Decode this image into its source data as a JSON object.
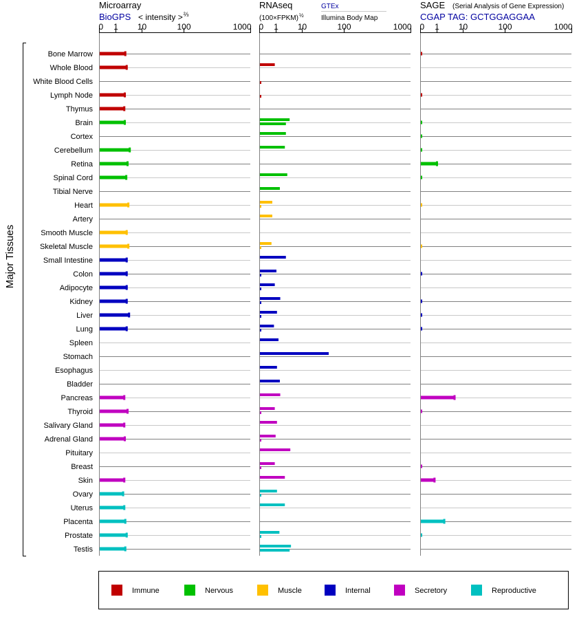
{
  "headers": {
    "microarray": {
      "title": "Microarray",
      "source": "BioGPS",
      "unit": "< intensity >",
      "unit_exp": "⅔"
    },
    "rnaseq": {
      "title": "RNAseq",
      "unit": "(100×FPKM)",
      "unit_exp": "½",
      "source_gtex": "GTEx",
      "source_ibm": "Illumina Body Map"
    },
    "sage": {
      "title": "SAGE",
      "subtitle": "(Serial Analysis of Gene Expression)",
      "tag": "CGAP TAG: GCTGGAGGAA"
    }
  },
  "group_label": "Major Tissues",
  "colors": {
    "Immune": "#c00000",
    "Nervous": "#00c000",
    "Muscle": "#ffc000",
    "Internal": "#0000c0",
    "Secretory": "#c000c0",
    "Reproductive": "#00c0c0",
    "link": "#0000a0",
    "grid_dark": "#808080",
    "grid_light": "#c8c8c8"
  },
  "legend": [
    "Immune",
    "Nervous",
    "Muscle",
    "Internal",
    "Secretory",
    "Reproductive"
  ],
  "chart_data": {
    "type": "bar",
    "orientation": "horizontal",
    "x_ticks": [
      0,
      1,
      10,
      100,
      1000
    ],
    "x_tick_labels": [
      "0",
      "1",
      "10",
      "100",
      "1000"
    ],
    "xlim": [
      0,
      1000
    ],
    "grid": true,
    "legend_placement": "bottom",
    "panels": [
      "Microarray",
      "RNAseq",
      "SAGE"
    ],
    "tissues": [
      {
        "name": "Bone Marrow",
        "group": "Immune",
        "micro": 2.3,
        "gtex": null,
        "ibm": null,
        "sage": 0.05
      },
      {
        "name": "Whole Blood",
        "group": "Immune",
        "micro": 2.6,
        "gtex": 0.9,
        "ibm": null,
        "sage": null
      },
      {
        "name": "White Blood Cells",
        "group": "Immune",
        "micro": null,
        "gtex": null,
        "ibm": 0.05,
        "sage": null
      },
      {
        "name": "Lymph Node",
        "group": "Immune",
        "micro": 2.2,
        "gtex": null,
        "ibm": 0.05,
        "sage": 0.05
      },
      {
        "name": "Thymus",
        "group": "Immune",
        "micro": 2.1,
        "gtex": null,
        "ibm": null,
        "sage": null
      },
      {
        "name": "Brain",
        "group": "Nervous",
        "micro": 2.2,
        "gtex": 3.2,
        "ibm": 2.3,
        "sage": 0.05
      },
      {
        "name": "Cortex",
        "group": "Nervous",
        "micro": null,
        "gtex": 2.3,
        "ibm": null,
        "sage": 0.05
      },
      {
        "name": "Cerebellum",
        "group": "Nervous",
        "micro": 3.4,
        "gtex": 2.1,
        "ibm": null,
        "sage": 0.05
      },
      {
        "name": "Retina",
        "group": "Nervous",
        "micro": 2.8,
        "gtex": null,
        "ibm": null,
        "sage": 1.0
      },
      {
        "name": "Spinal Cord",
        "group": "Nervous",
        "micro": 2.5,
        "gtex": 2.6,
        "ibm": null,
        "sage": 0.05
      },
      {
        "name": "Tibial Nerve",
        "group": "Nervous",
        "micro": null,
        "gtex": 1.35,
        "ibm": null,
        "sage": null
      },
      {
        "name": "Heart",
        "group": "Muscle",
        "micro": 3.0,
        "gtex": 0.75,
        "ibm": 0.08,
        "sage": 0.05
      },
      {
        "name": "Artery",
        "group": "Muscle",
        "micro": null,
        "gtex": 0.75,
        "ibm": null,
        "sage": null
      },
      {
        "name": "Smooth Muscle",
        "group": "Muscle",
        "micro": 2.6,
        "gtex": null,
        "ibm": null,
        "sage": null
      },
      {
        "name": "Skeletal Muscle",
        "group": "Muscle",
        "micro": 3.0,
        "gtex": 0.7,
        "ibm": 0.08,
        "sage": 0.05
      },
      {
        "name": "Small Intestine",
        "group": "Internal",
        "micro": 2.6,
        "gtex": 2.3,
        "ibm": null,
        "sage": null
      },
      {
        "name": "Colon",
        "group": "Internal",
        "micro": 2.6,
        "gtex": 1.0,
        "ibm": 0.08,
        "sage": 0.05
      },
      {
        "name": "Adipocyte",
        "group": "Internal",
        "micro": 2.6,
        "gtex": 0.9,
        "ibm": 0.08,
        "sage": null
      },
      {
        "name": "Kidney",
        "group": "Internal",
        "micro": 2.6,
        "gtex": 1.4,
        "ibm": 0.08,
        "sage": 0.05
      },
      {
        "name": "Liver",
        "group": "Internal",
        "micro": 3.2,
        "gtex": 1.05,
        "ibm": 0.08,
        "sage": 0.05
      },
      {
        "name": "Lung",
        "group": "Internal",
        "micro": 2.6,
        "gtex": 0.85,
        "ibm": 0.08,
        "sage": 0.05
      },
      {
        "name": "Spleen",
        "group": "Internal",
        "micro": null,
        "gtex": 1.2,
        "ibm": null,
        "sage": null
      },
      {
        "name": "Stomach",
        "group": "Internal",
        "micro": null,
        "gtex": 42,
        "ibm": null,
        "sage": null
      },
      {
        "name": "Esophagus",
        "group": "Internal",
        "micro": null,
        "gtex": 1.05,
        "ibm": null,
        "sage": null
      },
      {
        "name": "Bladder",
        "group": "Internal",
        "micro": null,
        "gtex": 1.35,
        "ibm": null,
        "sage": null
      },
      {
        "name": "Pancreas",
        "group": "Secretory",
        "micro": 2.1,
        "gtex": 1.4,
        "ibm": null,
        "sage": 4.7
      },
      {
        "name": "Thyroid",
        "group": "Secretory",
        "micro": 2.8,
        "gtex": 0.9,
        "ibm": 0.08,
        "sage": 0.05
      },
      {
        "name": "Salivary Gland",
        "group": "Secretory",
        "micro": 2.1,
        "gtex": 1.05,
        "ibm": null,
        "sage": null
      },
      {
        "name": "Adrenal Gland",
        "group": "Secretory",
        "micro": 2.2,
        "gtex": 0.95,
        "ibm": 0.08,
        "sage": null
      },
      {
        "name": "Pituitary",
        "group": "Secretory",
        "micro": null,
        "gtex": 3.4,
        "ibm": null,
        "sage": null
      },
      {
        "name": "Breast",
        "group": "Secretory",
        "micro": null,
        "gtex": 0.9,
        "ibm": 0.08,
        "sage": 0.05
      },
      {
        "name": "Skin",
        "group": "Secretory",
        "micro": 2.1,
        "gtex": 2.1,
        "ibm": null,
        "sage": 0.85
      },
      {
        "name": "Ovary",
        "group": "Reproductive",
        "micro": 1.9,
        "gtex": 1.05,
        "ibm": 0.08,
        "sage": null
      },
      {
        "name": "Uterus",
        "group": "Reproductive",
        "micro": 2.1,
        "gtex": 2.1,
        "ibm": null,
        "sage": null
      },
      {
        "name": "Placenta",
        "group": "Reproductive",
        "micro": 2.3,
        "gtex": null,
        "ibm": null,
        "sage": 1.9
      },
      {
        "name": "Prostate",
        "group": "Reproductive",
        "micro": 2.6,
        "gtex": 1.3,
        "ibm": 0.08,
        "sage": 0.05
      },
      {
        "name": "Testis",
        "group": "Reproductive",
        "micro": 2.3,
        "gtex": 3.6,
        "ibm": 3.2,
        "sage": null
      }
    ]
  }
}
